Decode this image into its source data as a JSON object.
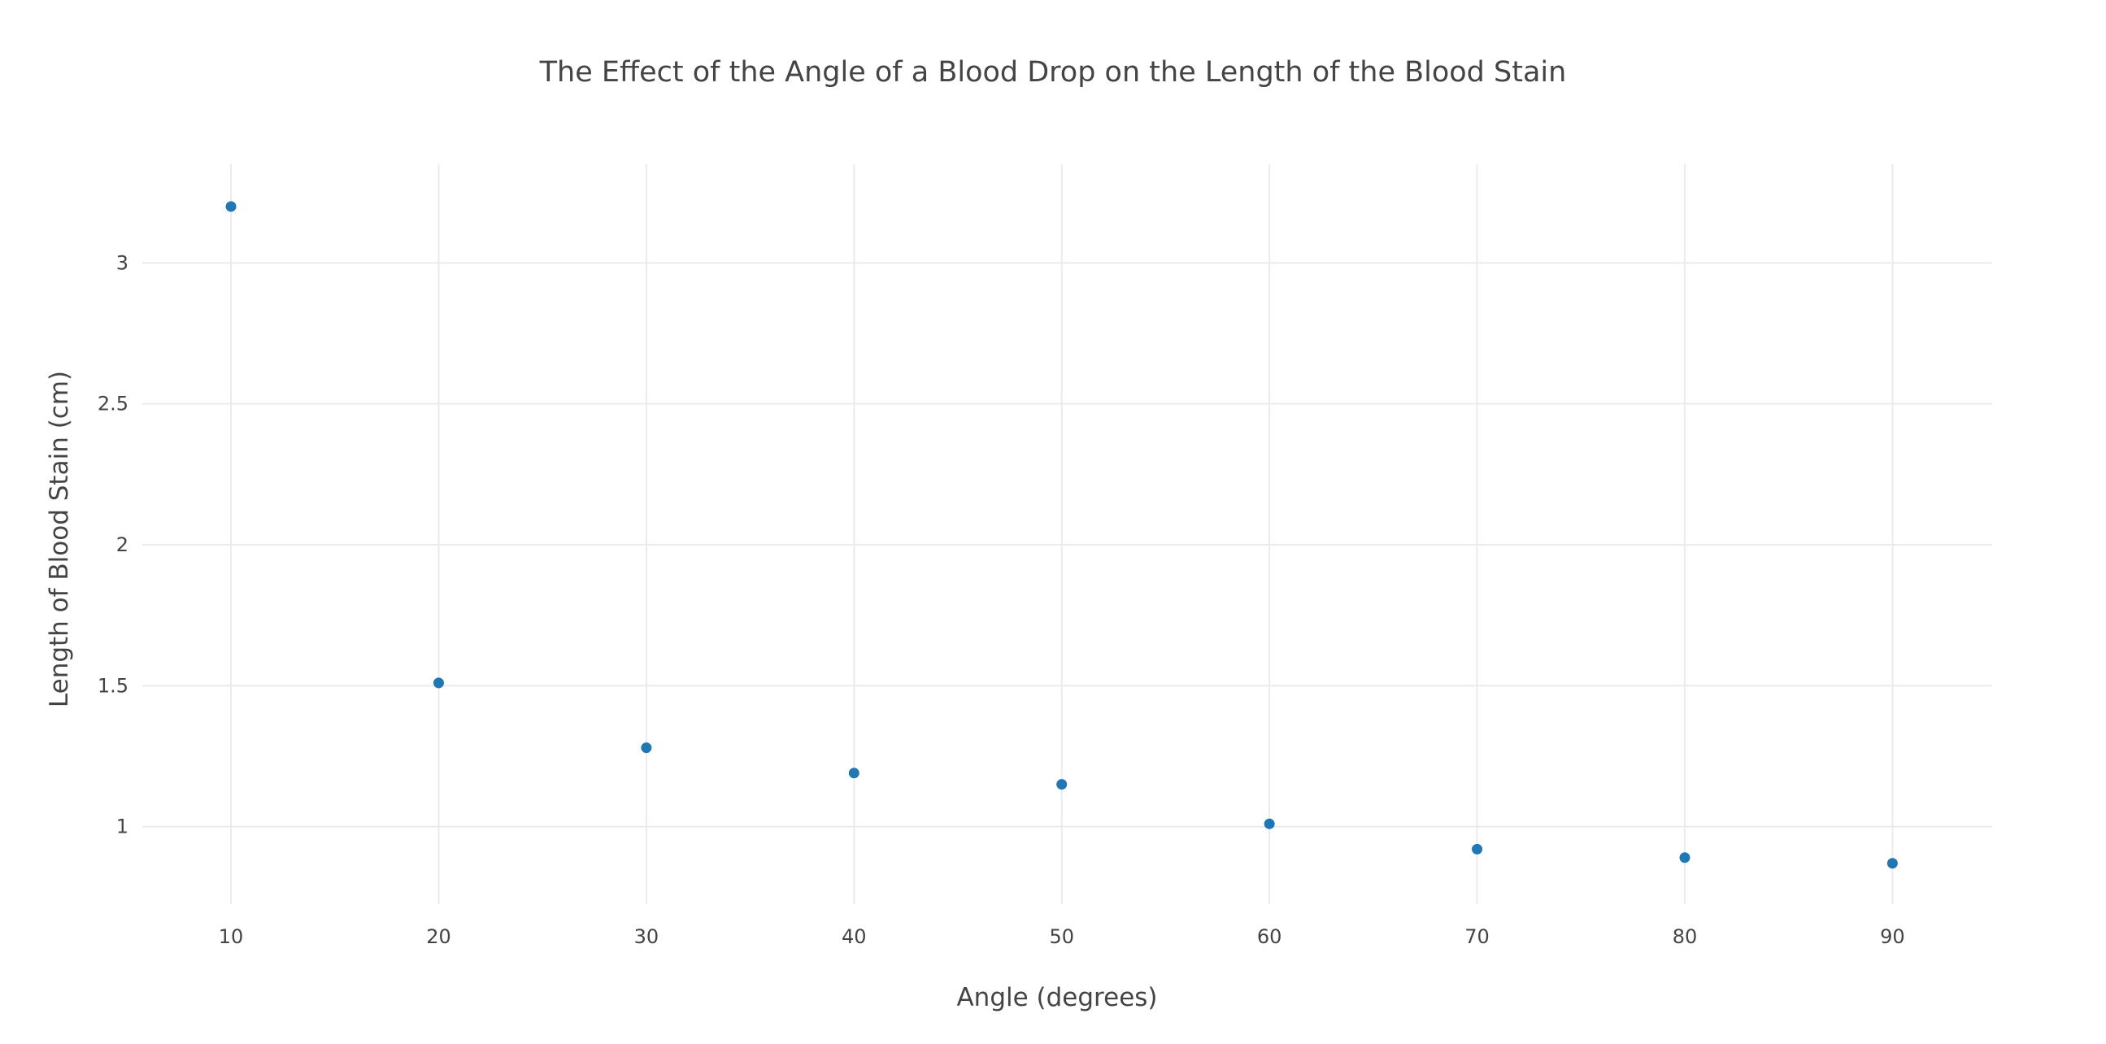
{
  "chart_data": {
    "type": "scatter",
    "title": "The Effect of the Angle of a Blood Drop on the Length of the Blood Stain",
    "xlabel": "Angle (degrees)",
    "ylabel": "Length of Blood Stain (cm)",
    "x": [
      10,
      20,
      30,
      40,
      50,
      60,
      70,
      80,
      90
    ],
    "series": [
      {
        "values": [
          3.2,
          1.51,
          1.28,
          1.19,
          1.15,
          1.01,
          0.92,
          0.89,
          0.87
        ]
      }
    ],
    "xlim": [
      5.73,
      94.8
    ],
    "ylim": [
      0.725,
      3.35
    ],
    "xticks": [
      "10",
      "20",
      "30",
      "40",
      "50",
      "60",
      "70",
      "80",
      "90"
    ],
    "yticks": [
      "1",
      "1.5",
      "2",
      "2.5",
      "3"
    ],
    "grid": true,
    "legend": "none",
    "marker_color": "#1f77b4"
  }
}
